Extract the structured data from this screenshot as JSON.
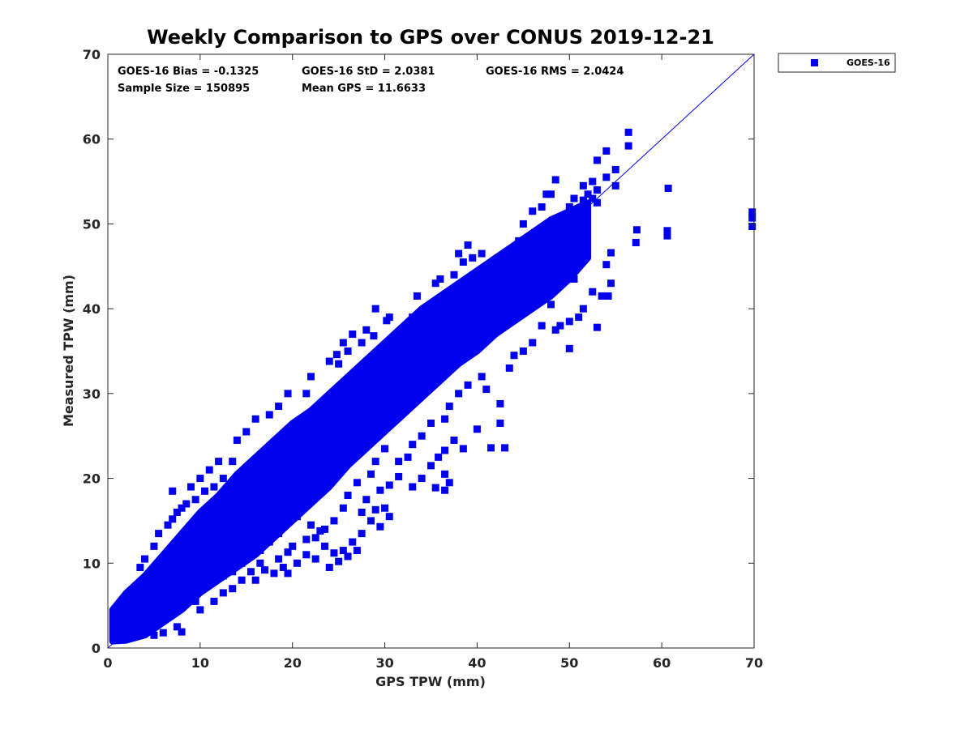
{
  "chart_data": {
    "type": "scatter",
    "title": "Weekly Comparison to GPS over CONUS 2019-12-21",
    "xlabel": "GPS TPW (mm)",
    "ylabel": "Measured TPW (mm)",
    "xlim": [
      0,
      70
    ],
    "ylim": [
      0,
      70
    ],
    "xticks": [
      "0",
      "10",
      "20",
      "30",
      "40",
      "50",
      "60",
      "70"
    ],
    "yticks": [
      "0",
      "10",
      "20",
      "30",
      "40",
      "50",
      "60",
      "70"
    ],
    "grid": false,
    "legend": {
      "position": "outside-top-right",
      "entries": [
        "GOES-16"
      ]
    },
    "annotations": [
      "GOES-16 Bias = -0.1325",
      "GOES-16 StD = 2.0381",
      "GOES-16 RMS = 2.0424",
      "Sample Size = 150895",
      "Mean GPS = 11.6633"
    ],
    "reference_line": {
      "type": "one-to-one",
      "from": [
        0,
        0
      ],
      "to": [
        70,
        70
      ]
    },
    "series": [
      {
        "name": "GOES-16",
        "color": "#0000ee",
        "marker": "square",
        "density_band": [
          {
            "x": 0.5,
            "ylo": 0.8,
            "yhi": 4.5
          },
          {
            "x": 2,
            "ylo": 0.9,
            "yhi": 6.5
          },
          {
            "x": 4,
            "ylo": 1.5,
            "yhi": 8.5
          },
          {
            "x": 6,
            "ylo": 3.0,
            "yhi": 11.0
          },
          {
            "x": 8,
            "ylo": 4.5,
            "yhi": 13.5
          },
          {
            "x": 10,
            "ylo": 6.5,
            "yhi": 16.0
          },
          {
            "x": 12,
            "ylo": 8.0,
            "yhi": 18.0
          },
          {
            "x": 14,
            "ylo": 9.5,
            "yhi": 20.5
          },
          {
            "x": 16,
            "ylo": 11.0,
            "yhi": 22.5
          },
          {
            "x": 18,
            "ylo": 13.0,
            "yhi": 24.5
          },
          {
            "x": 20,
            "ylo": 15.0,
            "yhi": 26.5
          },
          {
            "x": 22,
            "ylo": 17.0,
            "yhi": 28.0
          },
          {
            "x": 24,
            "ylo": 19.0,
            "yhi": 30.0
          },
          {
            "x": 26,
            "ylo": 21.5,
            "yhi": 32.0
          },
          {
            "x": 28,
            "ylo": 23.5,
            "yhi": 34.0
          },
          {
            "x": 30,
            "ylo": 25.5,
            "yhi": 36.0
          },
          {
            "x": 32,
            "ylo": 27.5,
            "yhi": 38.0
          },
          {
            "x": 34,
            "ylo": 29.5,
            "yhi": 40.0
          },
          {
            "x": 36,
            "ylo": 31.5,
            "yhi": 41.5
          },
          {
            "x": 38,
            "ylo": 33.5,
            "yhi": 43.0
          },
          {
            "x": 40,
            "ylo": 35.0,
            "yhi": 44.5
          },
          {
            "x": 42,
            "ylo": 37.0,
            "yhi": 46.0
          },
          {
            "x": 44,
            "ylo": 38.5,
            "yhi": 47.5
          },
          {
            "x": 46,
            "ylo": 40.0,
            "yhi": 49.0
          },
          {
            "x": 48,
            "ylo": 41.5,
            "yhi": 50.5
          },
          {
            "x": 50,
            "ylo": 43.5,
            "yhi": 51.5
          },
          {
            "x": 52,
            "ylo": 46.0,
            "yhi": 52.5
          }
        ],
        "points": [
          [
            56.4,
            60.8
          ],
          [
            56.4,
            59.2
          ],
          [
            54.0,
            58.6
          ],
          [
            53.0,
            57.5
          ],
          [
            55.0,
            56.4
          ],
          [
            54.0,
            55.5
          ],
          [
            53.0,
            54.0
          ],
          [
            52.5,
            53.0
          ],
          [
            55.0,
            54.5
          ],
          [
            51.5,
            54.5
          ],
          [
            48.5,
            55.2
          ],
          [
            50.0,
            52.0
          ],
          [
            60.7,
            54.2
          ],
          [
            69.8,
            51.4
          ],
          [
            69.8,
            50.7
          ],
          [
            69.8,
            49.7
          ],
          [
            60.6,
            49.2
          ],
          [
            60.6,
            48.6
          ],
          [
            57.3,
            49.3
          ],
          [
            57.2,
            47.8
          ],
          [
            54.5,
            46.6
          ],
          [
            54.0,
            45.2
          ],
          [
            54.5,
            43.0
          ],
          [
            53.5,
            41.5
          ],
          [
            54.2,
            41.5
          ],
          [
            53.0,
            37.8
          ],
          [
            50.0,
            35.3
          ],
          [
            51.0,
            39.0
          ],
          [
            49.0,
            38.0
          ],
          [
            48.0,
            40.5
          ],
          [
            42.5,
            28.8
          ],
          [
            42.5,
            26.5
          ],
          [
            40.0,
            25.8
          ],
          [
            43.0,
            23.6
          ],
          [
            41.5,
            23.6
          ],
          [
            38.5,
            23.5
          ],
          [
            37.5,
            24.5
          ],
          [
            36.5,
            23.3
          ],
          [
            35.8,
            22.5
          ],
          [
            35.0,
            21.5
          ],
          [
            36.5,
            20.5
          ],
          [
            37.0,
            19.5
          ],
          [
            36.5,
            18.6
          ],
          [
            35.5,
            18.9
          ],
          [
            34.0,
            20.0
          ],
          [
            33.0,
            19.0
          ],
          [
            31.5,
            20.2
          ],
          [
            30.5,
            19.2
          ],
          [
            29.5,
            18.6
          ],
          [
            30.0,
            16.5
          ],
          [
            30.5,
            15.5
          ],
          [
            29.0,
            16.3
          ],
          [
            28.0,
            17.5
          ],
          [
            27.5,
            16.0
          ],
          [
            28.5,
            15.0
          ],
          [
            29.5,
            14.3
          ],
          [
            27.5,
            13.5
          ],
          [
            26.5,
            12.5
          ],
          [
            27.0,
            11.5
          ],
          [
            25.5,
            11.5
          ],
          [
            26.0,
            10.8
          ],
          [
            24.5,
            11.2
          ],
          [
            23.5,
            12.0
          ],
          [
            22.5,
            10.5
          ],
          [
            24.0,
            9.5
          ],
          [
            25.0,
            10.2
          ],
          [
            22.8,
            22.3
          ],
          [
            21.0,
            21.5
          ],
          [
            20.0,
            20.8
          ],
          [
            23.0,
            20.5
          ],
          [
            24.0,
            20.0
          ],
          [
            22.5,
            19.0
          ],
          [
            21.0,
            16.8
          ],
          [
            20.5,
            15.5
          ],
          [
            22.0,
            14.5
          ],
          [
            23.0,
            13.8
          ],
          [
            21.5,
            12.8
          ],
          [
            20.0,
            12.0
          ],
          [
            19.5,
            11.3
          ],
          [
            18.5,
            10.5
          ],
          [
            19.0,
            9.5
          ],
          [
            18.0,
            8.8
          ],
          [
            17.0,
            9.2
          ],
          [
            16.0,
            8.0
          ],
          [
            16.5,
            10.0
          ],
          [
            15.5,
            9.0
          ],
          [
            14.5,
            8.0
          ],
          [
            13.5,
            7.0
          ],
          [
            12.5,
            6.5
          ],
          [
            11.5,
            5.5
          ],
          [
            13.5,
            22.0
          ],
          [
            13.5,
            19.5
          ],
          [
            12.5,
            20.0
          ],
          [
            11.5,
            19.0
          ],
          [
            10.5,
            18.5
          ],
          [
            9.5,
            17.5
          ],
          [
            8.5,
            17.0
          ],
          [
            8.0,
            16.5
          ],
          [
            7.5,
            16.0
          ],
          [
            7.0,
            15.2
          ],
          [
            6.5,
            14.5
          ],
          [
            5.5,
            13.5
          ],
          [
            8.0,
            1.9
          ],
          [
            7.5,
            2.5
          ],
          [
            6.0,
            1.8
          ],
          [
            5.0,
            1.5
          ],
          [
            10.0,
            4.5
          ],
          [
            9.5,
            5.5
          ],
          [
            30.5,
            39.0
          ],
          [
            30.2,
            38.6
          ],
          [
            33.0,
            39.0
          ],
          [
            33.5,
            41.5
          ],
          [
            35.5,
            43.0
          ],
          [
            36.0,
            43.5
          ],
          [
            37.5,
            44.0
          ],
          [
            38.5,
            45.5
          ],
          [
            39.5,
            46.0
          ],
          [
            40.5,
            46.5
          ],
          [
            39.0,
            47.5
          ],
          [
            38.0,
            46.5
          ],
          [
            44.5,
            48.0
          ],
          [
            45.0,
            50.0
          ],
          [
            46.0,
            51.5
          ],
          [
            47.0,
            52.0
          ],
          [
            47.5,
            53.5
          ],
          [
            48.0,
            53.5
          ],
          [
            50.5,
            53.0
          ],
          [
            52.0,
            53.5
          ],
          [
            53.0,
            52.5
          ],
          [
            52.5,
            55.0
          ],
          [
            51.5,
            52.8
          ],
          [
            50.5,
            50.8
          ],
          [
            27.5,
            36.0
          ],
          [
            26.0,
            35.0
          ],
          [
            25.0,
            33.5
          ],
          [
            24.0,
            33.8
          ],
          [
            26.5,
            37.0
          ],
          [
            28.0,
            37.5
          ],
          [
            28.8,
            36.8
          ],
          [
            29.0,
            40.0
          ],
          [
            25.5,
            36.0
          ],
          [
            24.8,
            34.6
          ],
          [
            22.0,
            32.0
          ],
          [
            21.5,
            30.0
          ],
          [
            19.5,
            30.0
          ],
          [
            18.5,
            28.5
          ],
          [
            17.5,
            27.5
          ],
          [
            16.0,
            27.0
          ],
          [
            15.0,
            25.5
          ],
          [
            14.0,
            24.5
          ],
          [
            12.0,
            22.0
          ],
          [
            11.0,
            21.0
          ],
          [
            10.0,
            20.0
          ],
          [
            9.0,
            19.0
          ],
          [
            7.0,
            18.5
          ],
          [
            4.0,
            10.5
          ],
          [
            3.5,
            9.5
          ],
          [
            5.0,
            12.0
          ],
          [
            45.0,
            35.0
          ],
          [
            44.0,
            34.5
          ],
          [
            46.0,
            36.0
          ],
          [
            43.5,
            33.0
          ],
          [
            47.0,
            38.0
          ],
          [
            48.5,
            37.5
          ],
          [
            50.0,
            38.5
          ],
          [
            51.5,
            40.0
          ],
          [
            52.5,
            42.0
          ],
          [
            50.5,
            43.5
          ],
          [
            39.0,
            31.0
          ],
          [
            38.0,
            30.0
          ],
          [
            40.5,
            32.0
          ],
          [
            41.0,
            30.5
          ],
          [
            37.0,
            28.5
          ],
          [
            36.5,
            27.0
          ],
          [
            35.0,
            26.5
          ],
          [
            34.0,
            25.0
          ],
          [
            33.0,
            24.0
          ],
          [
            32.5,
            22.5
          ],
          [
            31.5,
            22.0
          ],
          [
            30.0,
            23.5
          ],
          [
            29.0,
            22.0
          ],
          [
            28.5,
            20.5
          ],
          [
            27.0,
            19.5
          ],
          [
            26.0,
            18.0
          ],
          [
            25.5,
            16.5
          ],
          [
            24.5,
            15.0
          ],
          [
            23.5,
            14.0
          ],
          [
            22.5,
            13.0
          ],
          [
            21.5,
            11.0
          ],
          [
            20.5,
            10.0
          ],
          [
            19.5,
            8.8
          ],
          [
            18.5,
            13.5
          ],
          [
            17.5,
            12.5
          ],
          [
            16.5,
            11.5
          ],
          [
            15.5,
            11.0
          ],
          [
            14.5,
            10.0
          ],
          [
            13.5,
            9.0
          ],
          [
            12.5,
            8.5
          ]
        ]
      }
    ]
  }
}
